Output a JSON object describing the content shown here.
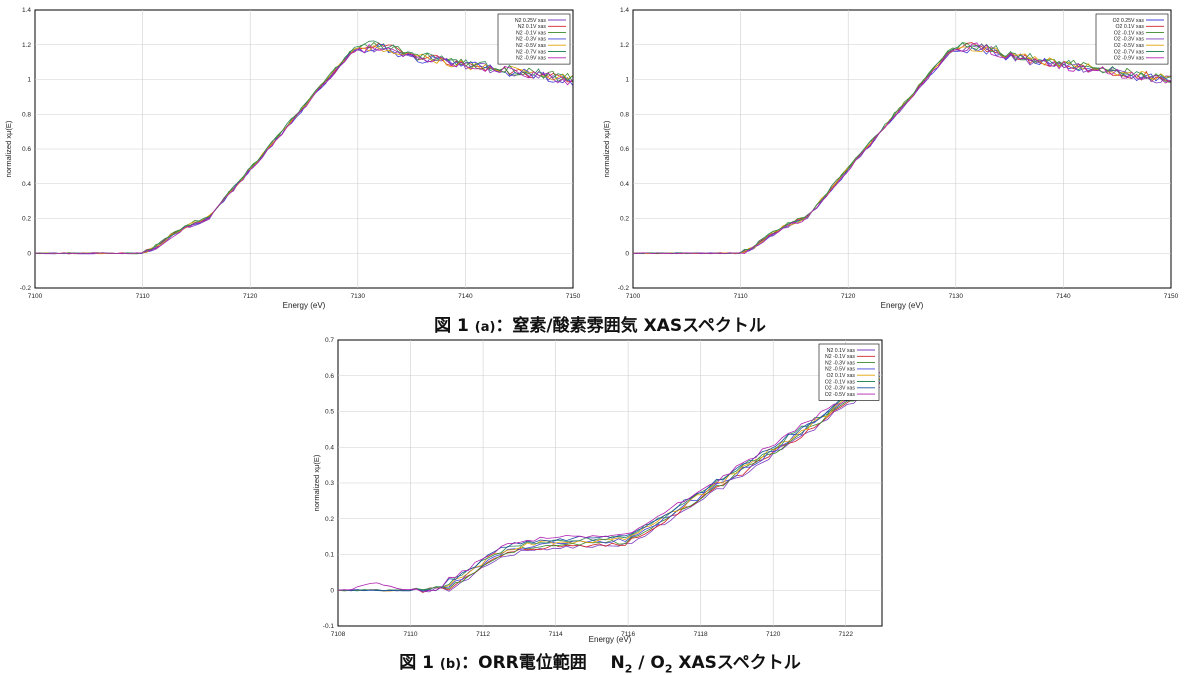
{
  "captions": {
    "a": {
      "fig": "図",
      "num": "1",
      "sub": "(a)",
      "text": "：窒素/酸素雰囲気 XASスペクトル"
    },
    "b": {
      "fig": "図",
      "num": "1",
      "sub": "(b)",
      "text": "：ORR電位範囲",
      "n": "N",
      "n_sub": "2",
      "slash": " / ",
      "o": "O",
      "o_sub": "2",
      "tail": " XASスペクトル"
    }
  },
  "chart_data": [
    {
      "id": "a-left",
      "type": "line",
      "xlabel": "Energy    (eV)",
      "ylabel": "normalized xμ(E)",
      "xlim": [
        7100,
        7150
      ],
      "ylim": [
        -0.2,
        1.4
      ],
      "xticks": [
        7100,
        7110,
        7120,
        7130,
        7140,
        7150
      ],
      "yticks": [
        -0.2,
        0,
        0.2,
        0.4,
        0.6,
        0.8,
        1,
        1.2,
        1.4
      ],
      "grid": true,
      "legend_position": "top-right",
      "shape": "edge",
      "series": [
        {
          "name": "N2 0.25V xas",
          "color": "#7b3fbf"
        },
        {
          "name": "N2 0.1V xas",
          "color": "#d0212a"
        },
        {
          "name": "N2 -0.1V xas",
          "color": "#3a8a2a"
        },
        {
          "name": "N2 -0.3V xas",
          "color": "#4040d8"
        },
        {
          "name": "N2 -0.5V xas",
          "color": "#e0a000"
        },
        {
          "name": "N2 -0.7V xas",
          "color": "#2f8a5a"
        },
        {
          "name": "N2 -0.9V xas",
          "color": "#b020b0"
        }
      ]
    },
    {
      "id": "a-right",
      "type": "line",
      "xlabel": "Energy    (eV)",
      "ylabel": "normalized xμ(E)",
      "xlim": [
        7100,
        7150
      ],
      "ylim": [
        -0.2,
        1.4
      ],
      "xticks": [
        7100,
        7110,
        7120,
        7130,
        7140,
        7150
      ],
      "yticks": [
        -0.2,
        0,
        0.2,
        0.4,
        0.6,
        0.8,
        1,
        1.2,
        1.4
      ],
      "grid": true,
      "legend_position": "top-right",
      "shape": "edge",
      "series": [
        {
          "name": "O2 0.25V xas",
          "color": "#4040d8"
        },
        {
          "name": "O2 0.1V xas",
          "color": "#d0212a"
        },
        {
          "name": "O2 -0.1V xas",
          "color": "#3a8a2a"
        },
        {
          "name": "O2 -0.3V xas",
          "color": "#7b3fbf"
        },
        {
          "name": "O2 -0.5V xas",
          "color": "#e0a000"
        },
        {
          "name": "O2 -0.7V xas",
          "color": "#2f8a5a"
        },
        {
          "name": "O2 -0.9V xas",
          "color": "#b020b0"
        }
      ]
    },
    {
      "id": "b",
      "type": "line",
      "xlabel": "Energy    (eV)",
      "ylabel": "normalized xμ(E)",
      "xlim": [
        7108,
        7123
      ],
      "ylim": [
        -0.1,
        0.7
      ],
      "xticks": [
        7108,
        7110,
        7112,
        7114,
        7116,
        7118,
        7120,
        7122
      ],
      "yticks": [
        -0.1,
        0,
        0.1,
        0.2,
        0.3,
        0.4,
        0.5,
        0.6,
        0.7
      ],
      "grid": true,
      "legend_position": "top-right",
      "shape": "zoom",
      "series": [
        {
          "name": "N2 0.1V xas",
          "color": "#7b3fbf"
        },
        {
          "name": "N2 -0.1V xas",
          "color": "#d0212a"
        },
        {
          "name": "N2 -0.3V xas",
          "color": "#3a8a2a"
        },
        {
          "name": "N2 -0.5V xas",
          "color": "#4040d8"
        },
        {
          "name": "O2 0.1V xas",
          "color": "#e0a000"
        },
        {
          "name": "O2 -0.1V xas",
          "color": "#2f8a5a"
        },
        {
          "name": "O2 -0.3V xas",
          "color": "#1a4fa0"
        },
        {
          "name": "O2 -0.5V xas",
          "color": "#b020b0"
        }
      ]
    }
  ]
}
